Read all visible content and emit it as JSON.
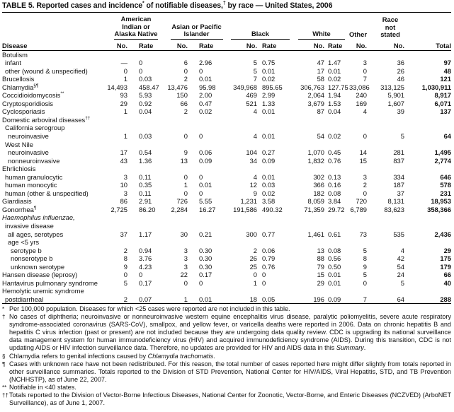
{
  "title": {
    "text": "TABLE 5. Reported cases and incidence",
    "mark1": "*",
    "mid": " of notifiable diseases,",
    "mark2": "†",
    "end": " by race — United States, 2006"
  },
  "header": {
    "groups": [
      "American Indian or Alaska Native",
      "Asian or Pacific Islander",
      "Black",
      "White"
    ],
    "other": "Other",
    "race_not_stated": "Race not stated",
    "columns": [
      "Disease",
      "No.",
      "Rate",
      "No.",
      "Rate",
      "No.",
      "Rate",
      "No.",
      "Rate",
      "No.",
      "No.",
      "Total"
    ]
  },
  "rows": [
    {
      "label": "Botulism",
      "indent": 0,
      "values": []
    },
    {
      "label": "infant",
      "indent": 1,
      "values": [
        "—",
        "0",
        "6",
        "2.96",
        "5",
        "0.75",
        "47",
        "1.47",
        "3",
        "36",
        "97"
      ]
    },
    {
      "label": "other (wound & unspecified)",
      "indent": 1,
      "values": [
        "0",
        "0",
        "0",
        "0",
        "5",
        "0.01",
        "17",
        "0.01",
        "0",
        "26",
        "48"
      ]
    },
    {
      "label": "Brucellosis",
      "indent": 0,
      "values": [
        "1",
        "0.03",
        "2",
        "0.01",
        "7",
        "0.02",
        "58",
        "0.02",
        "7",
        "46",
        "121"
      ]
    },
    {
      "label": "Chlamydia",
      "sup": "§¶",
      "indent": 0,
      "values": [
        "14,493",
        "458.47",
        "13,476",
        "95.98",
        "349,968",
        "895.65",
        "306,763",
        "127.75",
        "33,086",
        "313,125",
        "1,030,911"
      ]
    },
    {
      "label": "Coccidioidomycosis",
      "sup": "**",
      "indent": 0,
      "values": [
        "93",
        "5.93",
        "150",
        "2.00",
        "469",
        "2.99",
        "2,064",
        "1.94",
        "240",
        "5,901",
        "8,917"
      ]
    },
    {
      "label": "Cryptosporidiosis",
      "indent": 0,
      "values": [
        "29",
        "0.92",
        "66",
        "0.47",
        "521",
        "1.33",
        "3,679",
        "1.53",
        "169",
        "1,607",
        "6,071"
      ]
    },
    {
      "label": "Cyclosporiasis",
      "indent": 0,
      "values": [
        "1",
        "0.04",
        "2",
        "0.02",
        "4",
        "0.01",
        "87",
        "0.04",
        "4",
        "39",
        "137"
      ]
    },
    {
      "label": "Domestic arboviral diseases",
      "sup": "††",
      "indent": 0,
      "values": []
    },
    {
      "label": "California serogroup",
      "indent": 1,
      "values": []
    },
    {
      "label": "neuroinvasive",
      "indent": 2,
      "values": [
        "1",
        "0.03",
        "0",
        "0",
        "4",
        "0.01",
        "54",
        "0.02",
        "0",
        "5",
        "64"
      ]
    },
    {
      "label": "West Nile",
      "indent": 1,
      "values": []
    },
    {
      "label": "neuroinvasive",
      "indent": 2,
      "values": [
        "17",
        "0.54",
        "9",
        "0.06",
        "104",
        "0.27",
        "1,070",
        "0.45",
        "14",
        "281",
        "1,495"
      ]
    },
    {
      "label": "nonneuroinvasive",
      "indent": 2,
      "values": [
        "43",
        "1.36",
        "13",
        "0.09",
        "34",
        "0.09",
        "1,832",
        "0.76",
        "15",
        "837",
        "2,774"
      ]
    },
    {
      "label": "Ehrlichiosis",
      "indent": 0,
      "values": []
    },
    {
      "label": "human granulocytic",
      "indent": 1,
      "values": [
        "3",
        "0.11",
        "0",
        "0",
        "4",
        "0.01",
        "302",
        "0.13",
        "3",
        "334",
        "646"
      ]
    },
    {
      "label": "human monocytic",
      "indent": 1,
      "values": [
        "10",
        "0.35",
        "1",
        "0.01",
        "12",
        "0.03",
        "366",
        "0.16",
        "2",
        "187",
        "578"
      ]
    },
    {
      "label": "human (other & unspecified)",
      "indent": 1,
      "values": [
        "3",
        "0.11",
        "0",
        "0",
        "9",
        "0.02",
        "182",
        "0.08",
        "0",
        "37",
        "231"
      ]
    },
    {
      "label": "Giardiasis",
      "indent": 0,
      "values": [
        "86",
        "2.91",
        "726",
        "5.55",
        "1,231",
        "3.58",
        "8,059",
        "3.84",
        "720",
        "8,131",
        "18,953"
      ]
    },
    {
      "label": "Gonorrhea",
      "sup": "¶",
      "indent": 0,
      "values": [
        "2,725",
        "86.20",
        "2,284",
        "16.27",
        "191,586",
        "490.32",
        "71,359",
        "29.72",
        "6,789",
        "83,623",
        "358,366"
      ]
    },
    {
      "label": "Haemophilus influenzae,",
      "italic": true,
      "indent": 0,
      "values": []
    },
    {
      "label": "invasive disease",
      "indent": 1,
      "values": []
    },
    {
      "label": "all ages, serotypes",
      "indent": 2,
      "values": [
        "37",
        "1.17",
        "30",
        "0.21",
        "300",
        "0.77",
        "1,461",
        "0.61",
        "73",
        "535",
        "2,436"
      ]
    },
    {
      "label": "age <5 yrs",
      "indent": 2,
      "values": []
    },
    {
      "label": "serotype b",
      "indent": 3,
      "values": [
        "2",
        "0.94",
        "3",
        "0.30",
        "2",
        "0.06",
        "13",
        "0.08",
        "5",
        "4",
        "29"
      ]
    },
    {
      "label": "nonserotype b",
      "indent": 3,
      "values": [
        "8",
        "3.76",
        "3",
        "0.30",
        "26",
        "0.79",
        "88",
        "0.56",
        "8",
        "42",
        "175"
      ]
    },
    {
      "label": "unknown serotype",
      "indent": 3,
      "values": [
        "9",
        "4.23",
        "3",
        "0.30",
        "25",
        "0.76",
        "79",
        "0.50",
        "9",
        "54",
        "179"
      ]
    },
    {
      "label": "Hansen disease (leprosy)",
      "indent": 0,
      "values": [
        "0",
        "0",
        "22",
        "0.17",
        "0",
        "0",
        "15",
        "0.01",
        "5",
        "24",
        "66"
      ]
    },
    {
      "label": "Hantavirus pulmonary syndrome",
      "indent": 0,
      "values": [
        "5",
        "0.17",
        "0",
        "0",
        "1",
        "0",
        "29",
        "0.01",
        "0",
        "5",
        "40"
      ]
    },
    {
      "label": "Hemolytic uremic syndrome",
      "indent": 0,
      "values": []
    },
    {
      "label": "postdiarrheal",
      "indent": 1,
      "values": [
        "2",
        "0.07",
        "1",
        "0.01",
        "18",
        "0.05",
        "196",
        "0.09",
        "7",
        "64",
        "288"
      ]
    }
  ],
  "footnotes": [
    {
      "mark": "*",
      "text": "Per 100,000 population. Diseases for which <25 cases were reported are not included in this table."
    },
    {
      "mark": "†",
      "text": "No cases of diphtheria; neuroinvasive or nonneuroinvasive western equine encephalitis virus disease, paralytic poliomyelitis, severe acute respiratory syndrome-associated coronavirus (SARS-CoV), smallpox, and yellow fever, or varicella deaths were reported in 2006. Data on chronic hepatitis B and hepatitis C virus infection (past or present) are not included because they are undergoing data quality review. CDC is upgrading its national surveillance data management system for human immunodeficiency virus (HIV) and acquired immunodeficiency syndrome (AIDS). During this transition, CDC is not updating AIDS or HIV infection surveillance data. Therefore, no updates are provided for HIV and AIDS data in this ",
      "italic_tail": "Summary",
      "tail": "."
    },
    {
      "mark": "§",
      "text": "Chlamydia refers to genital infections caused by ",
      "italic_tail": "Chlamydia trachomatis",
      "tail": "."
    },
    {
      "mark": "¶",
      "text": "Cases with unknown race have not been redistributed. For this reason, the total number of cases reported here might differ slightly from totals reported in other surveillance summaries. Totals reported to the Division of STD Prevention, National Center for HIV/AIDS, Viral Hepatitis, STD, and TB Prevention (NCHHSTP), as of June 22, 2007."
    },
    {
      "mark": "**",
      "text": "Notifiable in <40 states."
    },
    {
      "mark": "††",
      "text": "Totals reported to the Division of Vector-Borne Infectious Diseases, National Center for Zoonotic, Vector-Borne, and Enteric Diseases (NCZVED) (ArboNET Surveillance), as of June 1, 2007."
    }
  ]
}
